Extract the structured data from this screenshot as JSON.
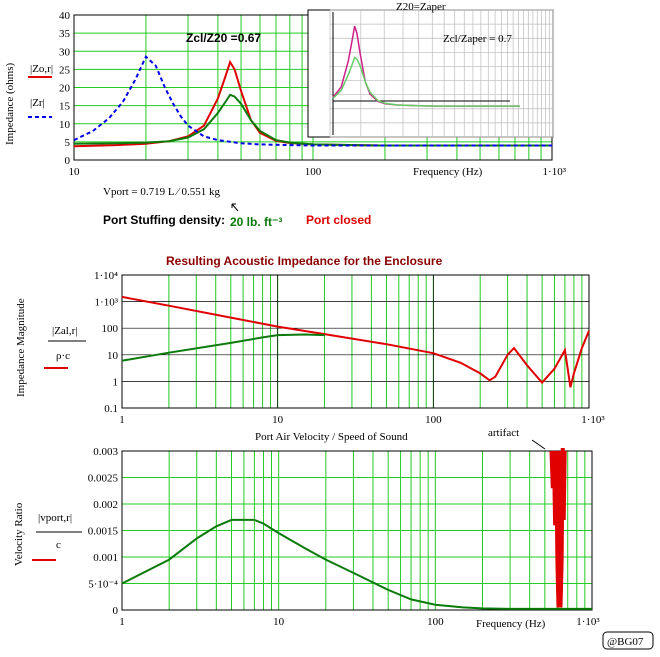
{
  "colors": {
    "red": "#e00000",
    "green": "#0a7a0a",
    "blue": "#0000ee",
    "grid": "#22cc22",
    "dark_red": "#8b0000"
  },
  "top": {
    "ylabel": "Impedance (ohms)",
    "legend_red": "|Zo,r|",
    "legend_blue": "|Zr|",
    "xlabel": "Frequency (Hz)",
    "annotation_ratio": "Zcl/Z20 =0.67",
    "vport_text": "Vport = 0.719 L ∕ 0.551 kg",
    "stuffing_label": "Port Stuffing density:",
    "stuffing_value": "20 lb. ft⁻³",
    "port_closed": "Port closed",
    "x_ticks": [
      "10",
      "100",
      "1·10³"
    ],
    "y_ticks": [
      "0",
      "5",
      "10",
      "15",
      "20",
      "25",
      "30",
      "35",
      "40"
    ],
    "inset": {
      "title": "Z20=Zaper",
      "ratio": "Zcl/Zaper = 0.7"
    }
  },
  "middle": {
    "title": "Resulting Acoustic Impedance for the Enclosure",
    "ylabel": "Impedance Magnitude",
    "legend_num": "|Zal,r|",
    "legend_den": "ρ·c",
    "x_ticks": [
      "1",
      "10",
      "100",
      "1·10³"
    ],
    "y_ticks": [
      "0.1",
      "1",
      "10",
      "100",
      "1·10³",
      "1·10⁴"
    ]
  },
  "bottom": {
    "title": "Port Air Velocity / Speed of Sound",
    "ylabel": "Velocity Ratio",
    "legend_num": "|vport,r|",
    "legend_den": "c",
    "artifact": "artifact",
    "xlabel": "Frequency (Hz)",
    "x_ticks": [
      "1",
      "10",
      "100",
      "1·10³"
    ],
    "y_ticks": [
      "0",
      "5·10⁻⁴",
      "0.001",
      "0.0015",
      "0.002",
      "0.0025",
      "0.003"
    ]
  },
  "watermark": "@BG07",
  "chart_data": [
    {
      "type": "line",
      "xlabel": "Frequency (Hz)",
      "ylabel": "Impedance (ohms)",
      "x_scale": "log",
      "xlim": [
        10,
        1000
      ],
      "ylim": [
        0,
        40
      ],
      "series": [
        {
          "name": "|Zo,r|",
          "color": "red",
          "x": [
            10,
            15,
            20,
            25,
            30,
            35,
            40,
            43,
            45,
            47,
            50,
            55,
            60,
            70,
            80,
            100,
            150,
            200,
            300,
            500,
            1000
          ],
          "y": [
            3.8,
            4.1,
            4.5,
            5.2,
            6.5,
            9.5,
            17,
            23,
            27,
            25,
            19,
            11,
            7.5,
            5.3,
            4.7,
            4.3,
            4.1,
            4.0,
            4.0,
            4.0,
            4.0
          ]
        },
        {
          "color": "green",
          "x": [
            10,
            15,
            20,
            25,
            30,
            35,
            40,
            43,
            45,
            47,
            50,
            55,
            60,
            70,
            80,
            100,
            150,
            200,
            300,
            500,
            1000
          ],
          "y": [
            4.5,
            4.6,
            4.8,
            5.2,
            6.2,
            8.5,
            13,
            16,
            18,
            17.5,
            15.5,
            11,
            8,
            5.5,
            4.8,
            4.3,
            4.1,
            4.0,
            4.0,
            4.0,
            4.0
          ]
        },
        {
          "name": "|Zr|",
          "color": "blue",
          "dashed": true,
          "x": [
            10,
            12,
            14,
            16,
            18,
            20,
            22,
            24,
            26,
            28,
            30,
            35,
            40,
            50,
            60,
            80,
            100,
            150,
            200,
            300,
            500,
            1000
          ],
          "y": [
            5.5,
            8,
            11.5,
            16,
            22,
            28.5,
            26,
            20,
            15.5,
            12,
            9.5,
            6.5,
            5.5,
            4.6,
            4.3,
            4.1,
            4.0,
            4.0,
            4.0,
            4.0,
            4.0,
            4.0
          ]
        }
      ]
    },
    {
      "type": "line",
      "title": "Resulting Acoustic Impedance for the Enclosure",
      "ylabel": "Impedance Magnitude",
      "x_scale": "log",
      "y_scale": "log",
      "xlim": [
        1,
        1000
      ],
      "ylim": [
        0.1,
        10000
      ],
      "series": [
        {
          "color": "red",
          "x": [
            1,
            2,
            5,
            10,
            20,
            50,
            100,
            150,
            200,
            230,
            250,
            300,
            330,
            400,
            500,
            600,
            700,
            730,
            760,
            800,
            900,
            1000
          ],
          "y": [
            1500,
            700,
            250,
            115,
            60,
            25,
            11.5,
            5,
            2,
            1.1,
            1.5,
            10,
            18,
            4,
            0.9,
            3,
            15,
            3,
            0.6,
            2,
            18,
            80
          ]
        },
        {
          "color": "green",
          "x": [
            1,
            2,
            5,
            8,
            10,
            15,
            20
          ],
          "y": [
            6,
            12,
            28,
            45,
            55,
            58,
            55
          ]
        }
      ]
    },
    {
      "type": "line",
      "title": "Port Air Velocity / Speed of Sound",
      "xlabel": "Frequency (Hz)",
      "ylabel": "Velocity Ratio",
      "x_scale": "log",
      "xlim": [
        1,
        1000
      ],
      "ylim": [
        0,
        0.003
      ],
      "series": [
        {
          "color": "green",
          "x": [
            1,
            2,
            3,
            4,
            5,
            6,
            7,
            8,
            10,
            15,
            20,
            30,
            50,
            70,
            100,
            150,
            200,
            300,
            500,
            1000
          ],
          "y": [
            0.0005,
            0.00095,
            0.00135,
            0.00158,
            0.0017,
            0.0017,
            0.0017,
            0.00163,
            0.00145,
            0.00115,
            0.00095,
            0.0007,
            0.00038,
            0.0002,
            0.0001,
            5e-05,
            3e-05,
            2e-05,
            2e-05,
            2e-05
          ]
        },
        {
          "color": "red",
          "x": [
            560,
            570,
            580,
            590,
            600,
            610,
            620,
            630,
            640,
            650,
            660,
            670
          ],
          "y": [
            0.003,
            0.0023,
            0.003,
            0.0016,
            0.003,
            0.0009,
            5e-05,
            0.0009,
            0.003,
            0.0017,
            0.003,
            0.003
          ]
        }
      ]
    }
  ]
}
